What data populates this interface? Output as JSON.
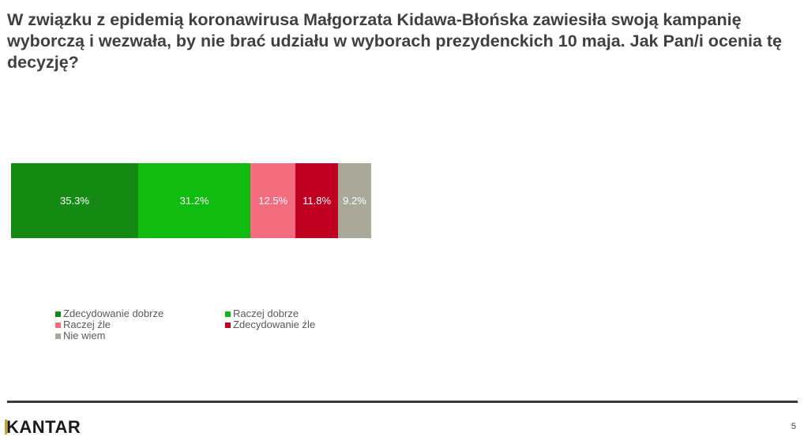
{
  "title": "W związku z epidemią koronawirusa Małgorzata Kidawa-Błońska zawiesiła swoją kampanię wyborczą i wezwała, by nie brać udziału w wyborach prezydenckich 10 maja.  Jak Pan/i ocenia tę decyzję?",
  "chart_data": {
    "type": "bar",
    "orientation": "horizontal-stacked-100",
    "categories": [
      "Zdecydowanie dobrze",
      "Raczej dobrze",
      "Raczej źle",
      "Zdecydowanie źle",
      "Nie wiem"
    ],
    "values": [
      35.3,
      31.2,
      12.5,
      11.8,
      9.2
    ],
    "labels": [
      "35.3%",
      "31.2%",
      "12.5%",
      "11.8%",
      "9.2%"
    ],
    "colors": [
      "#148a14",
      "#0fbb0f",
      "#f36c80",
      "#c00020",
      "#a9a99a"
    ],
    "legend_position": "bottom"
  },
  "footer": {
    "brand": "KANTAR",
    "page_number": "5"
  }
}
